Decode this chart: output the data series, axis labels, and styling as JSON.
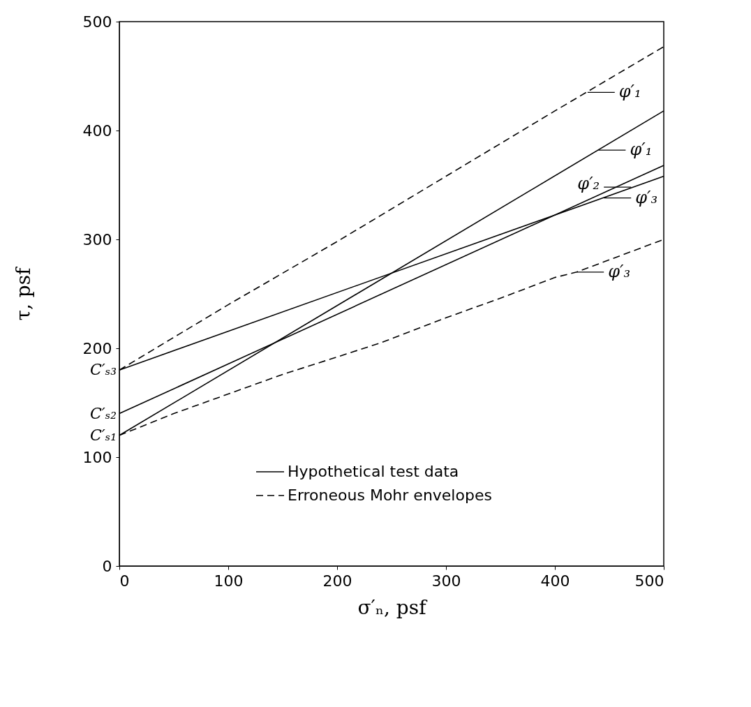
{
  "chart_data": {
    "type": "line",
    "xlabel": "σ′ₙ,  psf",
    "ylabel": "τ,  psf",
    "xlim": [
      0,
      500
    ],
    "ylim": [
      0,
      500
    ],
    "xticks": [
      0,
      100,
      200,
      300,
      400,
      500
    ],
    "yticks": [
      0,
      100,
      200,
      300,
      400,
      500
    ],
    "grid": false,
    "legend": "bottom",
    "marker": "none",
    "series": [
      {
        "name": "Hypothetical test data",
        "color": "#000000",
        "line_style": "solid",
        "x": [
          0,
          500
        ],
        "values": [
          120,
          418
        ]
      },
      {
        "color": "#000000",
        "line_style": "solid",
        "x": [
          0,
          500
        ],
        "values": [
          140,
          368
        ]
      },
      {
        "color": "#000000",
        "line_style": "solid",
        "x": [
          0,
          500
        ],
        "values": [
          180,
          358
        ]
      },
      {
        "name": "Erroneous Mohr envelopes",
        "color": "#000000",
        "line_style": "dashed",
        "x": [
          0,
          100,
          200,
          300,
          400,
          500
        ],
        "values": [
          180,
          240,
          298,
          358,
          418,
          477
        ]
      },
      {
        "color": "#000000",
        "line_style": "dashed",
        "x": [
          0,
          50,
          100,
          150,
          200,
          240,
          300,
          350,
          400,
          420,
          500
        ],
        "values": [
          120,
          140,
          158,
          176,
          192,
          205,
          228,
          246,
          265,
          270,
          300
        ]
      }
    ],
    "annotations": [
      {
        "text": "φ′₁",
        "x": 430,
        "y": 435
      },
      {
        "text": "φ′₁",
        "x": 440,
        "y": 382
      },
      {
        "text": "φ′₂",
        "x": 470,
        "y": 348
      },
      {
        "text": "φ′₃",
        "x": 445,
        "y": 338
      },
      {
        "text": "φ′₃",
        "x": 420,
        "y": 270
      },
      {
        "text": "C′ₛ₃",
        "x": 0,
        "y": 180
      },
      {
        "text": "C′ₛ₂",
        "x": 0,
        "y": 140
      },
      {
        "text": "C′ₛ₁",
        "x": 0,
        "y": 120
      }
    ]
  }
}
